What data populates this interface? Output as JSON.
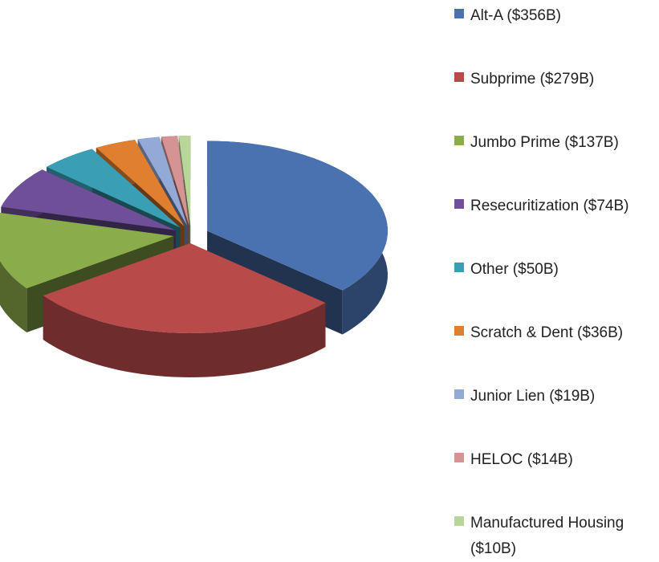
{
  "chart_data": {
    "type": "pie",
    "categories": [
      "Alt-A ($356B)",
      "Subprime ($279B)",
      "Jumbo Prime ($137B)",
      "Resecuritization ($74B)",
      "Other ($50B)",
      "Scratch & Dent ($36B)",
      "Junior Lien ($19B)",
      "HELOC ($14B)",
      "Manufactured Housing ($10B)"
    ],
    "values": [
      356,
      279,
      137,
      74,
      50,
      36,
      19,
      14,
      10
    ],
    "colors": [
      "#4a72b0",
      "#b84a4a",
      "#8aac4a",
      "#6f4f97",
      "#3a9fb5",
      "#e07f30",
      "#93a9d6",
      "#d69393",
      "#b9d69a"
    ],
    "legend": "right"
  }
}
